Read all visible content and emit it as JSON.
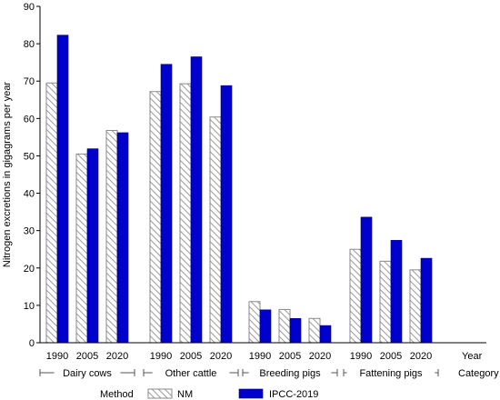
{
  "chart_data": {
    "type": "bar",
    "ylabel": "Nitrogen excretions in gigagrams per year",
    "ylim": [
      0,
      90
    ],
    "yticks": [
      0,
      10,
      20,
      30,
      40,
      50,
      60,
      70,
      80,
      90
    ],
    "year_axis_label": "Year",
    "category_axis_label": "Category",
    "legend_title": "Method",
    "groups": [
      {
        "name": "Dairy cows",
        "years": [
          "1990",
          "2005",
          "2020"
        ],
        "NM": [
          69.5,
          50.5,
          56.8
        ],
        "IPCC-2019": [
          82.3,
          51.9,
          56.2
        ]
      },
      {
        "name": "Other cattle",
        "years": [
          "1990",
          "2005",
          "2020"
        ],
        "NM": [
          67.2,
          69.3,
          60.4
        ],
        "IPCC-2019": [
          74.5,
          76.5,
          68.8
        ]
      },
      {
        "name": "Breeding pigs",
        "years": [
          "1990",
          "2005",
          "2020"
        ],
        "NM": [
          11.0,
          8.9,
          6.5
        ],
        "IPCC-2019": [
          8.8,
          6.5,
          4.6
        ]
      },
      {
        "name": "Fattening pigs",
        "years": [
          "1990",
          "2005",
          "2020"
        ],
        "NM": [
          25.0,
          21.8,
          19.5
        ],
        "IPCC-2019": [
          33.6,
          27.4,
          22.6
        ]
      }
    ],
    "series": [
      {
        "name": "NM",
        "color": "#ffffff",
        "pattern": "diagonal-hatch",
        "stroke": "#8a8a8a"
      },
      {
        "name": "IPCC-2019",
        "color": "#0000cc"
      }
    ],
    "grid": false,
    "legend_position": "bottom"
  }
}
